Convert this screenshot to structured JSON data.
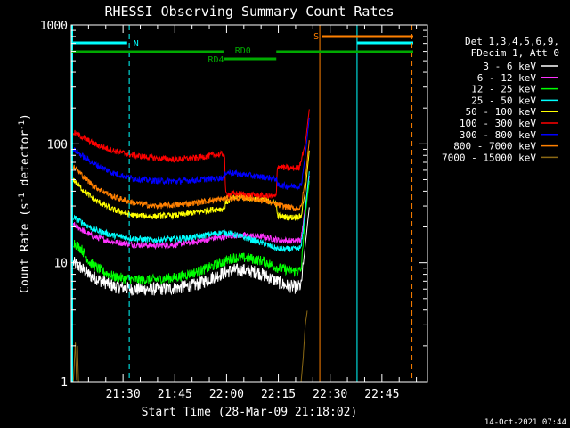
{
  "chart_data": {
    "type": "line",
    "title": "RHESSI Observing Summary Count Rates",
    "xlabel": "Start Time (28-Mar-09 21:18:02)",
    "ylabel_prefix": "Count Rate (s",
    "ylabel_sup": "-1",
    "ylabel_mid": " detector",
    "ylabel_suffix": ")",
    "y_scale": "log",
    "ylim": [
      1,
      1000
    ],
    "xlim_minutes": [
      21.25,
      22.97
    ],
    "x_ticks": [
      {
        "t": 21.5,
        "label": "21:30"
      },
      {
        "t": 21.75,
        "label": "21:45"
      },
      {
        "t": 22.0,
        "label": "22:00"
      },
      {
        "t": 22.25,
        "label": "22:15"
      },
      {
        "t": 22.5,
        "label": "22:30"
      },
      {
        "t": 22.75,
        "label": "22:45"
      }
    ],
    "y_ticks": [
      {
        "v": 1,
        "label": "1"
      },
      {
        "v": 10,
        "label": "10"
      },
      {
        "v": 100,
        "label": "100"
      },
      {
        "v": 1000,
        "label": "1000"
      }
    ],
    "legend_header": [
      "Det 1,3,4,5,6,9,",
      "FDecim 1, Att 0"
    ],
    "series": [
      {
        "name": "3 - 6 keV",
        "color": "#ffffff",
        "points": [
          [
            21.26,
            10
          ],
          [
            21.3,
            9
          ],
          [
            21.34,
            7.8
          ],
          [
            21.4,
            7
          ],
          [
            21.46,
            6.3
          ],
          [
            21.55,
            6
          ],
          [
            21.65,
            6
          ],
          [
            21.75,
            6.1
          ],
          [
            21.85,
            6.5
          ],
          [
            21.93,
            7.5
          ],
          [
            21.99,
            8.3
          ],
          [
            22.02,
            8.6
          ],
          [
            22.08,
            8.7
          ],
          [
            22.15,
            8.3
          ],
          [
            22.22,
            7.3
          ],
          [
            22.28,
            6.5
          ],
          [
            22.33,
            6.2
          ],
          [
            22.36,
            6.4
          ],
          [
            22.38,
            14
          ],
          [
            22.4,
            30
          ]
        ]
      },
      {
        "name": "6 - 12 keV",
        "color": "#ff33ff",
        "points": [
          [
            21.26,
            21
          ],
          [
            21.3,
            19
          ],
          [
            21.36,
            16.5
          ],
          [
            21.45,
            15
          ],
          [
            21.55,
            14.2
          ],
          [
            21.65,
            14
          ],
          [
            21.75,
            14.2
          ],
          [
            21.85,
            15
          ],
          [
            21.93,
            16
          ],
          [
            21.99,
            16.5
          ],
          [
            22.03,
            17
          ],
          [
            22.1,
            17
          ],
          [
            22.18,
            16.5
          ],
          [
            22.25,
            15.5
          ],
          [
            22.33,
            15.2
          ],
          [
            22.36,
            15.5
          ],
          [
            22.38,
            30
          ],
          [
            22.4,
            55
          ]
        ]
      },
      {
        "name": "12 - 25 keV",
        "color": "#00ff00",
        "points": [
          [
            21.26,
            15
          ],
          [
            21.3,
            13
          ],
          [
            21.34,
            10
          ],
          [
            21.4,
            8.5
          ],
          [
            21.46,
            7.6
          ],
          [
            21.55,
            7.2
          ],
          [
            21.65,
            7.2
          ],
          [
            21.75,
            7.5
          ],
          [
            21.85,
            8.3
          ],
          [
            21.93,
            9.3
          ],
          [
            21.99,
            10.3
          ],
          [
            22.03,
            11
          ],
          [
            22.1,
            11
          ],
          [
            22.18,
            10.3
          ],
          [
            22.25,
            9
          ],
          [
            22.33,
            8.5
          ],
          [
            22.36,
            8.6
          ],
          [
            22.38,
            25
          ],
          [
            22.4,
            50
          ]
        ]
      },
      {
        "name": "25 - 50 keV",
        "color": "#00ffff",
        "points": [
          [
            21.26,
            24
          ],
          [
            21.3,
            22
          ],
          [
            21.36,
            19
          ],
          [
            21.45,
            17
          ],
          [
            21.55,
            16
          ],
          [
            21.65,
            15.5
          ],
          [
            21.75,
            15.8
          ],
          [
            21.85,
            16.5
          ],
          [
            21.93,
            17.5
          ],
          [
            21.99,
            18
          ],
          [
            22.03,
            17.5
          ],
          [
            22.1,
            16
          ],
          [
            22.18,
            14.5
          ],
          [
            22.25,
            13
          ],
          [
            22.33,
            13
          ],
          [
            22.36,
            13.3
          ],
          [
            22.38,
            28
          ],
          [
            22.4,
            60
          ]
        ]
      },
      {
        "name": "50 - 100 keV",
        "color": "#ffff00",
        "points": [
          [
            21.26,
            50
          ],
          [
            21.3,
            42
          ],
          [
            21.36,
            34
          ],
          [
            21.45,
            28
          ],
          [
            21.55,
            25
          ],
          [
            21.65,
            24.5
          ],
          [
            21.75,
            25
          ],
          [
            21.85,
            26.5
          ],
          [
            21.93,
            28
          ],
          [
            21.99,
            28.5
          ],
          [
            21.995,
            32
          ],
          [
            22.05,
            36
          ],
          [
            22.12,
            35
          ],
          [
            22.2,
            33
          ],
          [
            22.24,
            32
          ],
          [
            22.245,
            25
          ],
          [
            22.3,
            24
          ],
          [
            22.36,
            24.5
          ],
          [
            22.38,
            40
          ],
          [
            22.4,
            90
          ]
        ]
      },
      {
        "name": "100 - 300 keV",
        "color": "#ff0000",
        "points": [
          [
            21.26,
            125
          ],
          [
            21.3,
            115
          ],
          [
            21.36,
            100
          ],
          [
            21.45,
            88
          ],
          [
            21.55,
            80
          ],
          [
            21.65,
            76
          ],
          [
            21.75,
            74
          ],
          [
            21.85,
            76
          ],
          [
            21.93,
            80
          ],
          [
            21.99,
            82
          ],
          [
            21.995,
            38
          ],
          [
            22.05,
            38
          ],
          [
            22.12,
            37
          ],
          [
            22.2,
            36.5
          ],
          [
            22.24,
            36
          ],
          [
            22.245,
            65
          ],
          [
            22.3,
            62
          ],
          [
            22.35,
            63
          ],
          [
            22.38,
            100
          ],
          [
            22.4,
            200
          ]
        ]
      },
      {
        "name": "300 - 800 keV",
        "color": "#0000ff",
        "points": [
          [
            21.26,
            90
          ],
          [
            21.3,
            80
          ],
          [
            21.36,
            68
          ],
          [
            21.45,
            57
          ],
          [
            21.55,
            51
          ],
          [
            21.65,
            49
          ],
          [
            21.75,
            48.5
          ],
          [
            21.85,
            49.5
          ],
          [
            21.93,
            51
          ],
          [
            21.99,
            52
          ],
          [
            21.995,
            58
          ],
          [
            22.05,
            56
          ],
          [
            22.12,
            54
          ],
          [
            22.2,
            52
          ],
          [
            22.24,
            51
          ],
          [
            22.245,
            45
          ],
          [
            22.3,
            44
          ],
          [
            22.36,
            44.5
          ],
          [
            22.38,
            80
          ],
          [
            22.4,
            170
          ]
        ]
      },
      {
        "name": "800 - 7000 keV",
        "color": "#ff8000",
        "points": [
          [
            21.26,
            65
          ],
          [
            21.3,
            55
          ],
          [
            21.36,
            44
          ],
          [
            21.45,
            36
          ],
          [
            21.55,
            32
          ],
          [
            21.65,
            30
          ],
          [
            21.75,
            30.5
          ],
          [
            21.85,
            32
          ],
          [
            21.93,
            33.5
          ],
          [
            21.99,
            34.5
          ],
          [
            22.03,
            35
          ],
          [
            22.1,
            35
          ],
          [
            22.18,
            33.5
          ],
          [
            22.25,
            30.5
          ],
          [
            22.33,
            28.5
          ],
          [
            22.36,
            29
          ],
          [
            22.38,
            50
          ],
          [
            22.4,
            110
          ]
        ]
      },
      {
        "name": "7000 - 15000 keV",
        "color": "#8b6914",
        "points": [
          [
            21.26,
            1
          ],
          [
            21.27,
            2.2
          ],
          [
            21.275,
            1
          ],
          [
            21.28,
            2
          ],
          [
            21.285,
            1
          ],
          [
            21.29,
            1
          ],
          [
            22.36,
            1
          ],
          [
            22.37,
            1.6
          ],
          [
            22.38,
            3
          ],
          [
            22.39,
            4
          ]
        ]
      }
    ],
    "annotations": [
      {
        "text": "N",
        "color": "#00ffff"
      },
      {
        "text": "S",
        "color": "#ff8000"
      },
      {
        "text": "RD0",
        "color": "#00aa00"
      },
      {
        "text": "RD4",
        "color": "#00aa00"
      }
    ],
    "timestamp": "14-Oct-2021 07:44"
  }
}
